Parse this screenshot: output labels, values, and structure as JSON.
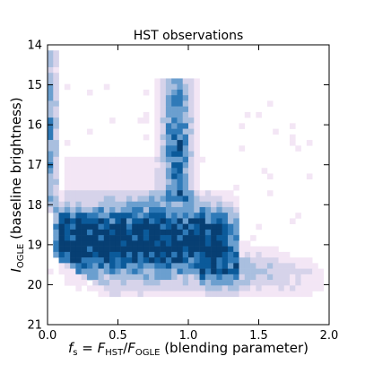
{
  "chart_data": {
    "type": "heatmap",
    "title": "HST observations",
    "xlabel": {
      "main": "f",
      "main_sub": "s",
      "eq": " = ",
      "num": "F",
      "num_sub": "HST",
      "slash": "/",
      "den": "F",
      "den_sub": "OGLE",
      "suffix": " (blending parameter)"
    },
    "ylabel": {
      "main": "I",
      "main_sub": "OGLE",
      "suffix": " (baseline brightness)"
    },
    "xlim": [
      0.0,
      2.0
    ],
    "ylim": [
      14,
      21
    ],
    "y_inverted": true,
    "x_ticks": [
      "0.0",
      "0.5",
      "1.0",
      "1.5",
      "2.0"
    ],
    "y_ticks": [
      "14",
      "15",
      "16",
      "17",
      "18",
      "19",
      "20",
      "21"
    ],
    "grid": false,
    "bin_width_x": 0.04,
    "bin_height_y": 0.14,
    "colormap": [
      "#f3e6f5",
      "#d6d3ea",
      "#a9bfdf",
      "#6b9fcf",
      "#2f7ab8",
      "#0b5a9a",
      "#073f73"
    ],
    "density_features": [
      {
        "name": "main-clump",
        "x_center": 0.6,
        "y_center": 18.9,
        "x_extent": [
          0.05,
          1.3
        ],
        "y_extent": [
          17.8,
          20.2
        ]
      },
      {
        "name": "vertical-branch",
        "x_center": 0.9,
        "y_top": 15.0,
        "y_bottom": 17.8
      },
      {
        "name": "left-edge-stripe",
        "x_center": 0.03,
        "y_top": 14.3,
        "y_bottom": 18.0
      },
      {
        "name": "right-tail",
        "x_extent": [
          1.2,
          1.95
        ],
        "y_extent": [
          19.0,
          20.2
        ]
      }
    ]
  }
}
